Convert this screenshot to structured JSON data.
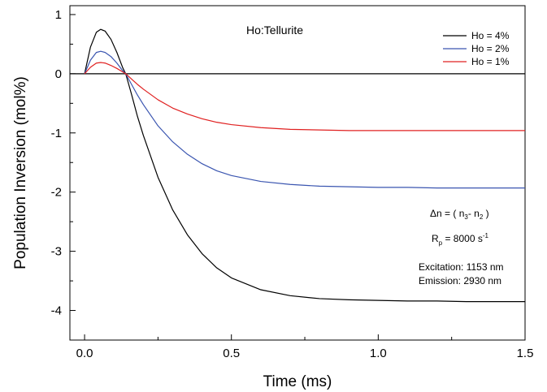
{
  "chart_data": {
    "type": "line",
    "title": "Ho:Tellurite",
    "xlabel": "Time (ms)",
    "ylabel": "Population Inversion (mol%)",
    "xlim": [
      -0.05,
      1.5
    ],
    "ylim": [
      -4.5,
      1.15
    ],
    "x_ticks": [
      0.0,
      0.5,
      1.0,
      1.5
    ],
    "x_tick_labels": [
      "0.0",
      "0.5",
      "1.0",
      "1.5"
    ],
    "y_ticks": [
      1,
      0,
      -1,
      -2,
      -3,
      -4
    ],
    "y_tick_labels": [
      "1",
      "0",
      "-1",
      "-2",
      "-3",
      "-4"
    ],
    "grid": false,
    "legend_position": "top-right",
    "zero_line": 0,
    "series": [
      {
        "name": "Ho = 4%",
        "color": "#000000",
        "x": [
          0.0,
          0.02,
          0.04,
          0.055,
          0.07,
          0.09,
          0.11,
          0.13,
          0.14,
          0.16,
          0.18,
          0.2,
          0.25,
          0.3,
          0.35,
          0.4,
          0.45,
          0.5,
          0.6,
          0.7,
          0.8,
          0.9,
          1.0,
          1.1,
          1.2,
          1.3,
          1.4,
          1.5
        ],
        "y": [
          0.0,
          0.45,
          0.7,
          0.75,
          0.72,
          0.58,
          0.36,
          0.1,
          0.0,
          -0.35,
          -0.72,
          -1.04,
          -1.75,
          -2.3,
          -2.72,
          -3.04,
          -3.28,
          -3.45,
          -3.65,
          -3.75,
          -3.8,
          -3.82,
          -3.83,
          -3.84,
          -3.84,
          -3.85,
          -3.85,
          -3.85
        ]
      },
      {
        "name": "Ho = 2%",
        "color": "#3a55b0",
        "x": [
          0.0,
          0.02,
          0.04,
          0.055,
          0.07,
          0.09,
          0.11,
          0.13,
          0.14,
          0.16,
          0.18,
          0.2,
          0.25,
          0.3,
          0.35,
          0.4,
          0.45,
          0.5,
          0.6,
          0.7,
          0.8,
          0.9,
          1.0,
          1.1,
          1.2,
          1.3,
          1.4,
          1.5
        ],
        "y": [
          0.0,
          0.23,
          0.36,
          0.38,
          0.36,
          0.29,
          0.18,
          0.05,
          0.0,
          -0.18,
          -0.36,
          -0.52,
          -0.88,
          -1.15,
          -1.36,
          -1.52,
          -1.64,
          -1.72,
          -1.82,
          -1.87,
          -1.9,
          -1.91,
          -1.92,
          -1.92,
          -1.93,
          -1.93,
          -1.93,
          -1.93
        ]
      },
      {
        "name": "Ho = 1%",
        "color": "#e02020",
        "x": [
          0.0,
          0.02,
          0.04,
          0.055,
          0.07,
          0.09,
          0.11,
          0.13,
          0.14,
          0.16,
          0.18,
          0.2,
          0.25,
          0.3,
          0.35,
          0.4,
          0.45,
          0.5,
          0.6,
          0.7,
          0.8,
          0.9,
          1.0,
          1.1,
          1.2,
          1.3,
          1.4,
          1.5
        ],
        "y": [
          0.0,
          0.11,
          0.18,
          0.19,
          0.18,
          0.14,
          0.09,
          0.03,
          0.0,
          -0.09,
          -0.18,
          -0.26,
          -0.44,
          -0.58,
          -0.68,
          -0.76,
          -0.82,
          -0.86,
          -0.91,
          -0.94,
          -0.95,
          -0.96,
          -0.96,
          -0.96,
          -0.96,
          -0.96,
          -0.96,
          -0.96
        ]
      }
    ],
    "annotations": {
      "delta_n_prefix": "Δn = ( n",
      "delta_n_sub1": "3",
      "delta_n_mid": "- n",
      "delta_n_sub2": "2",
      "delta_n_suffix": " )",
      "rp_main": "R",
      "rp_sub": "p",
      "rp_mid": " = 8000 s",
      "rp_sup": "-1",
      "excitation": "Excitation: 1153 nm",
      "emission": "Emission: 2930 nm"
    }
  }
}
